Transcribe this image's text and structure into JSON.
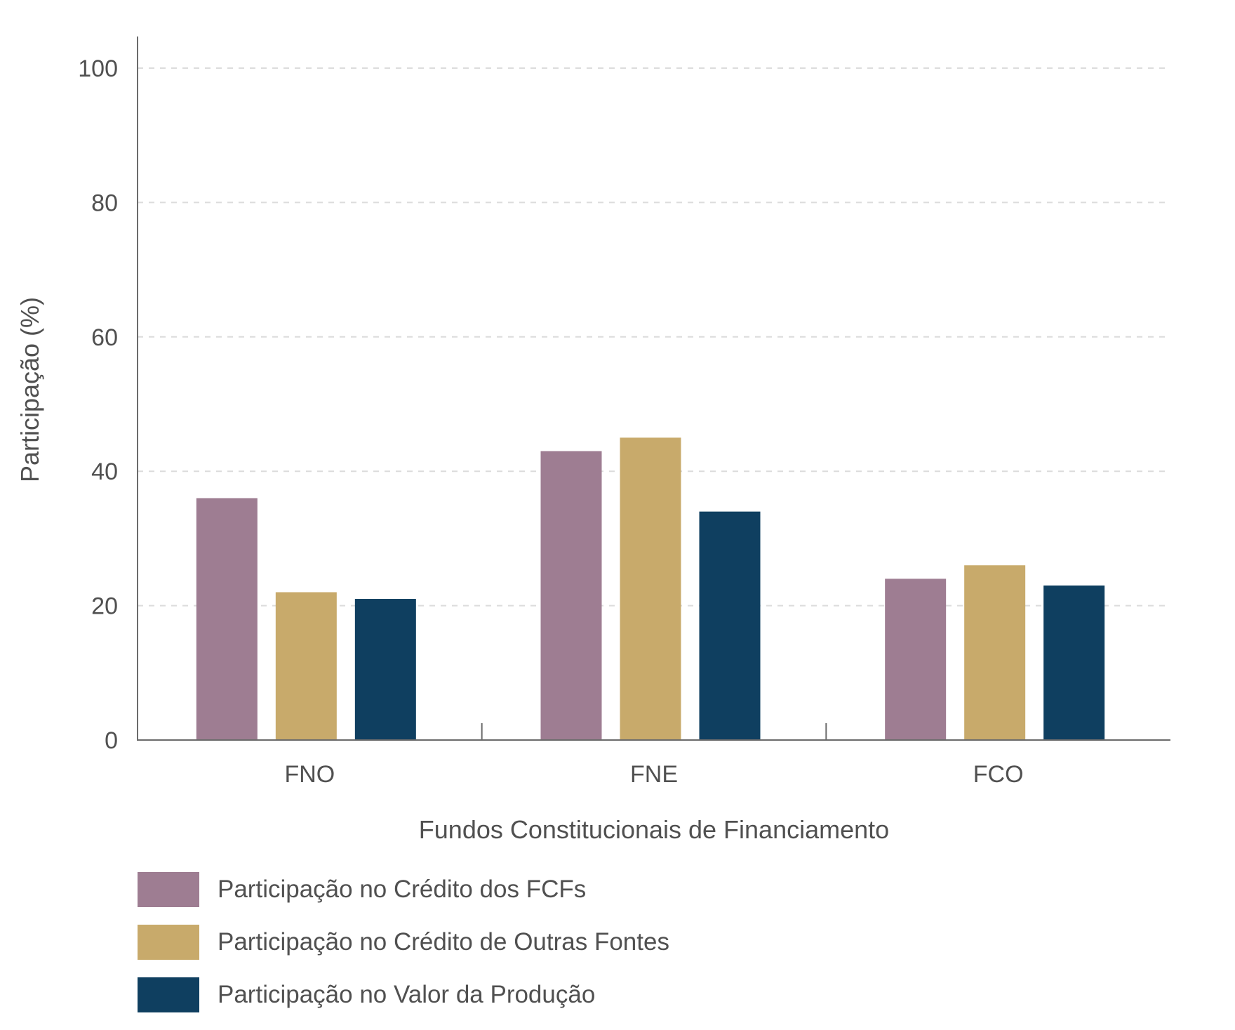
{
  "chart_data": {
    "type": "bar",
    "title": "",
    "xlabel": "Fundos Constitucionais de Financiamento",
    "ylabel": "Participação (%)",
    "categories": [
      "FNO",
      "FNE",
      "FCO"
    ],
    "ylim": [
      0,
      100
    ],
    "yticks": [
      0,
      20,
      40,
      60,
      80,
      100
    ],
    "grid": true,
    "legend_position": "bottom-left",
    "series": [
      {
        "name": "Participação no Crédito dos FCFs",
        "color": "#9e7d92",
        "values": [
          36,
          43,
          24
        ]
      },
      {
        "name": "Participação no Crédito de Outras Fontes",
        "color": "#c8aa6b",
        "values": [
          22,
          45,
          26
        ]
      },
      {
        "name": "Participação no Valor da Produção",
        "color": "#0f3f60",
        "values": [
          21,
          34,
          23
        ]
      }
    ]
  }
}
